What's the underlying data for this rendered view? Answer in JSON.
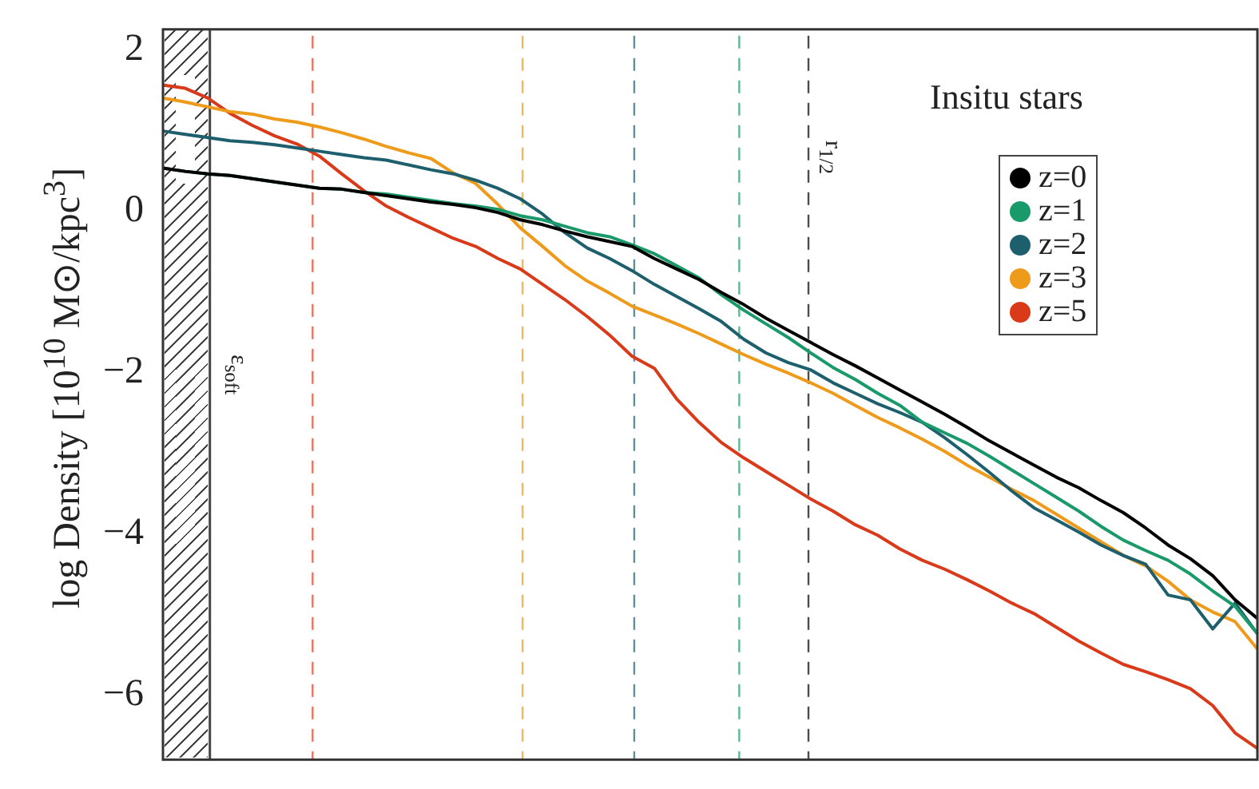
{
  "chart_data": {
    "type": "line",
    "annotations": [
      "Insitu stars",
      "r$_{1/2}$",
      "ε$_{soft}$"
    ],
    "ylabel": "log Density [10$^{10}$ M⊙/kpc$^{3}$]",
    "categories": [
      null,
      null,
      null,
      null,
      null,
      null,
      null,
      null,
      null,
      null,
      null,
      null,
      null,
      null,
      null,
      null,
      null,
      null,
      null,
      null,
      null,
      null,
      null,
      null,
      null,
      null,
      null,
      null,
      null,
      null,
      null,
      null,
      null,
      null,
      null,
      null,
      null,
      null,
      null,
      null,
      null,
      null,
      null,
      null,
      null,
      null,
      null,
      null,
      null,
      null
    ],
    "ylim": [
      -6.8,
      2.25
    ],
    "yticks": [
      -6,
      -4,
      -2,
      0,
      2
    ],
    "tick_labels": "y",
    "legend": "top right",
    "marker": "none",
    "line_style": "solid",
    "series": [
      {
        "name": "z=0",
        "color": "#000000",
        "values": [
          0.53,
          0.49,
          0.46,
          0.44,
          0.4,
          0.36,
          0.32,
          0.28,
          0.27,
          0.23,
          0.19,
          0.15,
          0.11,
          0.08,
          0.04,
          -0.02,
          -0.11,
          -0.17,
          -0.25,
          -0.32,
          -0.38,
          -0.44,
          -0.59,
          -0.72,
          -0.85,
          -1.01,
          -1.16,
          -1.33,
          -1.48,
          -1.63,
          -1.78,
          -1.92,
          -2.07,
          -2.22,
          -2.37,
          -2.52,
          -2.68,
          -2.85,
          -3.0,
          -3.15,
          -3.3,
          -3.43,
          -3.59,
          -3.74,
          -3.93,
          -4.14,
          -4.31,
          -4.52,
          -4.82,
          -5.05
        ]
      },
      {
        "name": "z=1",
        "color": "#1a9a6a",
        "values": [
          0.53,
          0.49,
          0.46,
          0.44,
          0.4,
          0.36,
          0.32,
          0.28,
          0.27,
          0.23,
          0.21,
          0.17,
          0.13,
          0.09,
          0.06,
          0.02,
          -0.06,
          -0.11,
          -0.19,
          -0.27,
          -0.32,
          -0.42,
          -0.53,
          -0.68,
          -0.83,
          -1.04,
          -1.23,
          -1.4,
          -1.57,
          -1.76,
          -1.94,
          -2.09,
          -2.26,
          -2.41,
          -2.62,
          -2.75,
          -2.88,
          -3.04,
          -3.21,
          -3.38,
          -3.55,
          -3.72,
          -3.91,
          -4.08,
          -4.21,
          -4.33,
          -4.5,
          -4.71,
          -4.9,
          -5.24
        ]
      },
      {
        "name": "z=2",
        "color": "#1e5f6e",
        "values": [
          0.99,
          0.95,
          0.91,
          0.87,
          0.85,
          0.82,
          0.78,
          0.74,
          0.7,
          0.66,
          0.63,
          0.57,
          0.51,
          0.46,
          0.38,
          0.28,
          0.15,
          -0.04,
          -0.27,
          -0.46,
          -0.59,
          -0.74,
          -0.91,
          -1.06,
          -1.21,
          -1.37,
          -1.59,
          -1.76,
          -1.88,
          -1.97,
          -2.13,
          -2.26,
          -2.39,
          -2.5,
          -2.62,
          -2.81,
          -3.02,
          -3.24,
          -3.47,
          -3.68,
          -3.83,
          -3.98,
          -4.14,
          -4.27,
          -4.38,
          -4.76,
          -4.82,
          -5.18,
          -4.86,
          -5.24
        ]
      },
      {
        "name": "z=3",
        "color": "#ee9a1a",
        "values": [
          1.4,
          1.35,
          1.29,
          1.23,
          1.2,
          1.14,
          1.1,
          1.04,
          0.97,
          0.89,
          0.8,
          0.72,
          0.65,
          0.47,
          0.34,
          0.08,
          -0.21,
          -0.44,
          -0.68,
          -0.87,
          -1.02,
          -1.18,
          -1.29,
          -1.4,
          -1.52,
          -1.65,
          -1.78,
          -1.9,
          -2.01,
          -2.13,
          -2.26,
          -2.41,
          -2.56,
          -2.69,
          -2.83,
          -2.98,
          -3.15,
          -3.3,
          -3.45,
          -3.59,
          -3.76,
          -3.93,
          -4.1,
          -4.27,
          -4.4,
          -4.59,
          -4.82,
          -4.97,
          -5.09,
          -5.43
        ]
      },
      {
        "name": "z=5",
        "color": "#d93a1a",
        "values": [
          1.56,
          1.52,
          1.4,
          1.21,
          1.06,
          0.93,
          0.83,
          0.68,
          0.46,
          0.25,
          0.06,
          -0.08,
          -0.21,
          -0.34,
          -0.44,
          -0.59,
          -0.72,
          -0.91,
          -1.1,
          -1.31,
          -1.54,
          -1.8,
          -1.95,
          -2.33,
          -2.62,
          -2.87,
          -3.06,
          -3.23,
          -3.4,
          -3.57,
          -3.72,
          -3.89,
          -4.02,
          -4.19,
          -4.33,
          -4.44,
          -4.57,
          -4.71,
          -4.86,
          -4.99,
          -5.16,
          -5.33,
          -5.48,
          -5.62,
          -5.71,
          -5.81,
          -5.92,
          -6.13,
          -6.47,
          -6.66
        ]
      }
    ]
  }
}
